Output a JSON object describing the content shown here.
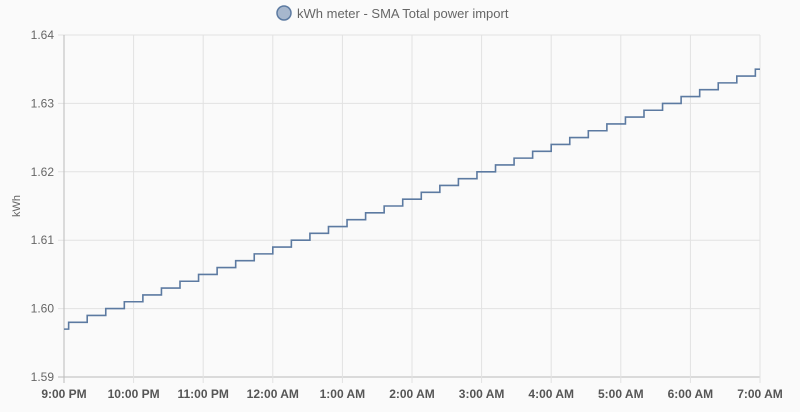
{
  "chart_data": {
    "type": "line",
    "step": true,
    "title": "",
    "legend": {
      "label": "kWh meter - SMA Total power import",
      "placement": "top-center"
    },
    "xlabel": "",
    "ylabel": "kWh",
    "ylim": [
      1.59,
      1.64
    ],
    "y_ticks": [
      "1.64",
      "1.63",
      "1.62",
      "1.61",
      "1.60",
      "1.59"
    ],
    "x_ticks": [
      "9:00 PM",
      "10:00 PM",
      "11:00 PM",
      "12:00 AM",
      "1:00 AM",
      "2:00 AM",
      "3:00 AM",
      "4:00 AM",
      "5:00 AM",
      "6:00 AM",
      "7:00 AM"
    ],
    "x_unit": "minutes after 9:00 PM",
    "xlim": [
      0,
      600
    ],
    "grid": true,
    "series": [
      {
        "name": "kWh meter - SMA Total power import",
        "color": "#5c7aa1",
        "legend_fill": "#a7b7cd",
        "x": [
          0,
          4,
          20,
          36,
          52,
          68,
          84,
          100,
          116,
          132,
          148,
          164,
          180,
          196,
          212,
          228,
          244,
          260,
          276,
          292,
          308,
          324,
          340,
          356,
          372,
          388,
          404,
          420,
          436,
          452,
          468,
          484,
          500,
          516,
          532,
          548,
          564,
          580,
          596
        ],
        "values": [
          1.597,
          1.598,
          1.599,
          1.6,
          1.601,
          1.602,
          1.603,
          1.604,
          1.605,
          1.606,
          1.607,
          1.608,
          1.609,
          1.61,
          1.611,
          1.612,
          1.613,
          1.614,
          1.615,
          1.616,
          1.617,
          1.618,
          1.619,
          1.62,
          1.621,
          1.622,
          1.623,
          1.624,
          1.625,
          1.626,
          1.627,
          1.628,
          1.629,
          1.63,
          1.631,
          1.632,
          1.633,
          1.634,
          1.635
        ]
      }
    ]
  }
}
